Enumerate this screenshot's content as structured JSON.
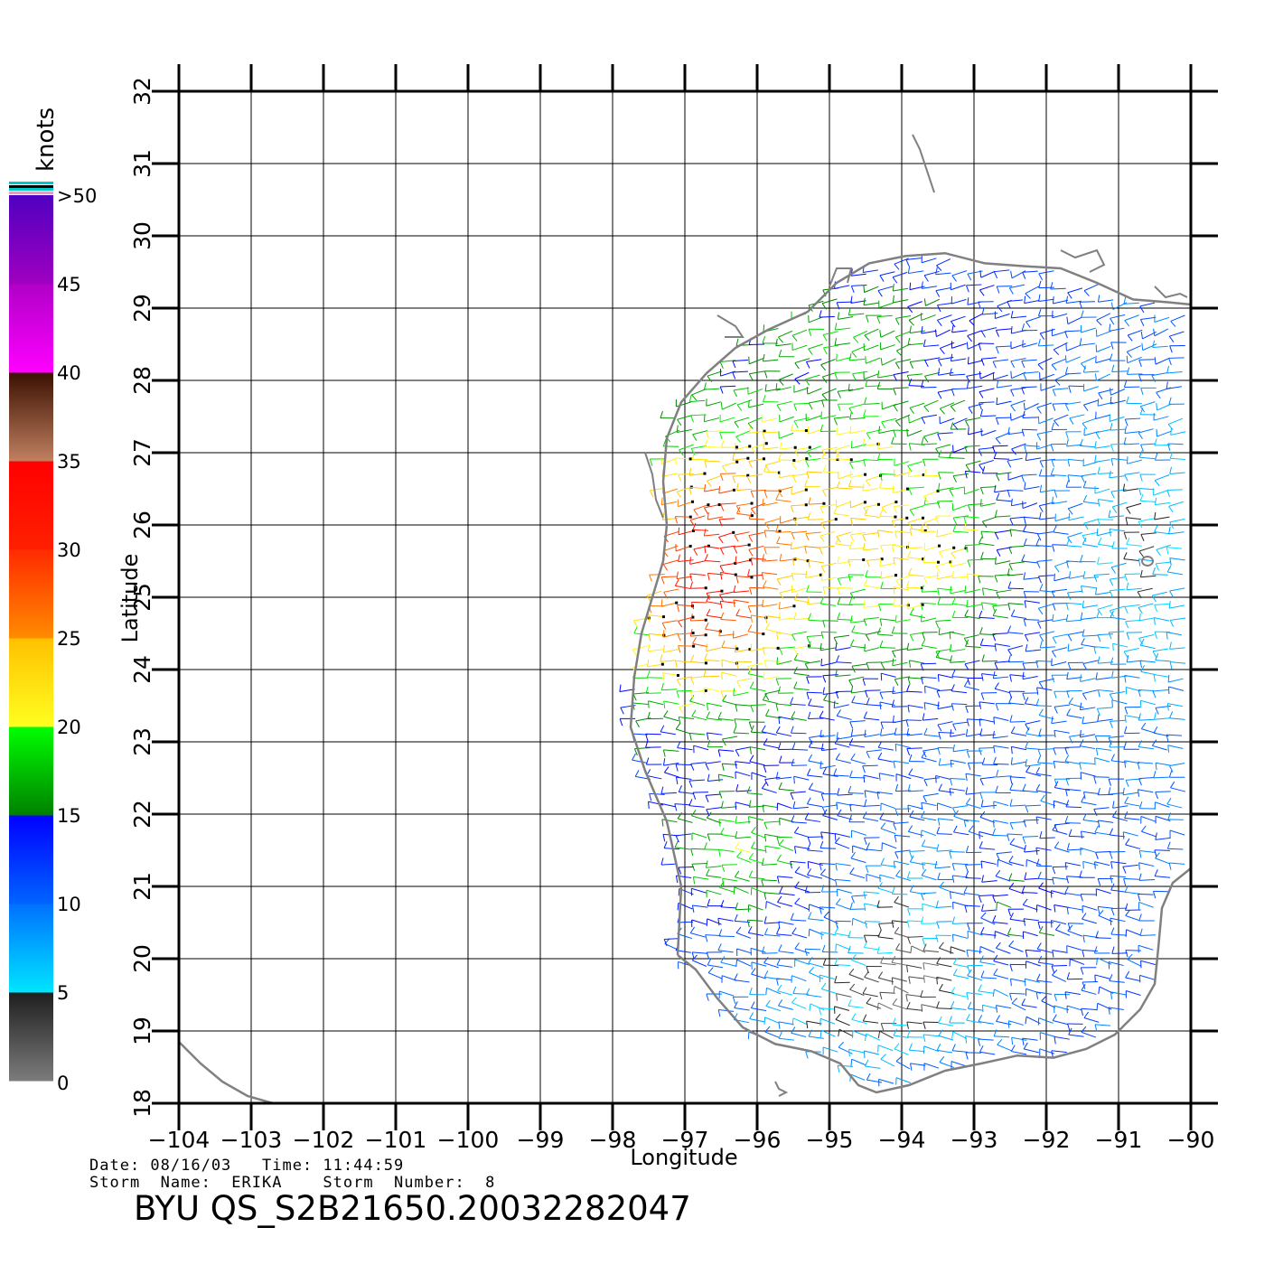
{
  "map": {
    "lon_ticks": [
      -104,
      -103,
      -102,
      -101,
      -100,
      -99,
      -98,
      -97,
      -96,
      -95,
      -94,
      -93,
      -92,
      -91,
      -90
    ],
    "lat_ticks": [
      18,
      19,
      20,
      21,
      22,
      23,
      24,
      25,
      26,
      27,
      28,
      29,
      30,
      31,
      32
    ],
    "lon_range": [
      -104,
      -90
    ],
    "lat_range": [
      18,
      32
    ],
    "xlabel": "Longitude",
    "ylabel": "Latitude",
    "grid": true,
    "coastline_color": "#808080"
  },
  "colorbar": {
    "unit": "knots",
    "labels": [
      "0",
      "5",
      "10",
      "15",
      "20",
      "25",
      "30",
      "35",
      "40",
      "45",
      ">50"
    ],
    "segments": [
      {
        "from": 0,
        "to": 5,
        "colors": [
          "#7c7c7c",
          "#1e1e1e"
        ]
      },
      {
        "from": 5,
        "to": 10,
        "colors": [
          "#00e5ff",
          "#0070ff"
        ]
      },
      {
        "from": 10,
        "to": 15,
        "colors": [
          "#0064ff",
          "#0000ff"
        ]
      },
      {
        "from": 15,
        "to": 20,
        "colors": [
          "#008000",
          "#00ff00"
        ]
      },
      {
        "from": 20,
        "to": 25,
        "colors": [
          "#ffff20",
          "#ffc000"
        ]
      },
      {
        "from": 25,
        "to": 30,
        "colors": [
          "#ff8c00",
          "#ff2a00"
        ]
      },
      {
        "from": 30,
        "to": 35,
        "colors": [
          "#ff2000",
          "#ff0000"
        ]
      },
      {
        "from": 35,
        "to": 40,
        "colors": [
          "#c08060",
          "#3a1000"
        ]
      },
      {
        "from": 40,
        "to": 45,
        "colors": [
          "#ff00ff",
          "#b000c8"
        ]
      },
      {
        "from": 45,
        "to": 50,
        "colors": [
          "#a000c0",
          "#5000c0"
        ]
      }
    ]
  },
  "info": {
    "line1": "Date: 08/16/03   Time: 11:44:59",
    "line2": "Storm  Name:  ERIKA    Storm  Number:  8",
    "product": "BYU  QS_S2B21650.20032282047"
  }
}
